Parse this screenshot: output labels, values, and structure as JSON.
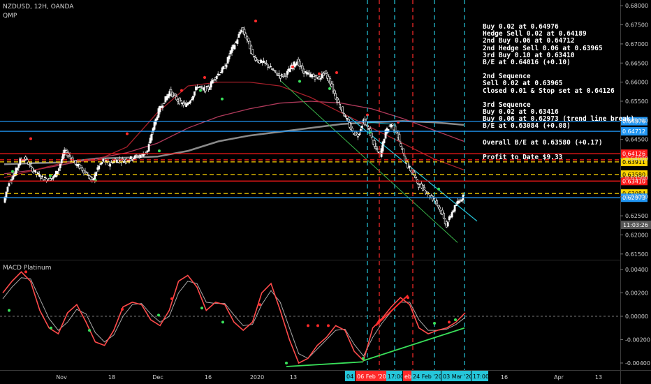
{
  "header": {
    "symbol": "NZDUSD, 12H, OANDA",
    "indicator": "QMP"
  },
  "macd_title": "MACD Platinum",
  "notes": {
    "group1": [
      "Buy 0.02 at 0.64976",
      "Hedge Sell 0.02 at 0.64189",
      "2nd Buy 0.06 at 0.64712",
      "2nd Hedge Sell 0.06 at 0.63965",
      "3rd Buy 0.10 at 0.63410",
      "B/E at 0.64016 (+0.10)"
    ],
    "group2": [
      "2nd Sequence",
      "Sell 0.02 at 0.63965",
      "Closed 0.01 & Stop set at 0.64126"
    ],
    "group3": [
      "3rd Sequence",
      "Buy 0.02 at 0.63416",
      "Buy 0.06 at 0.62973 (trend line break)",
      "B/E at 0.63084 (+0.08)"
    ],
    "overall": "Overall B/E at 0.63580 (+0.17)",
    "profit": "Profit to Date $9.33"
  },
  "colors": {
    "blue": "#2196f3",
    "red": "#ff1a1a",
    "yellow": "#ffd500",
    "up": "#ffffff",
    "down": "#ffffff",
    "ma_slow": "#8a8a8a",
    "ma_mid": "#b03a5b",
    "ma_fast": "#a51f2a",
    "channel_green": "#39b54a",
    "channel_cyan": "#26c6da",
    "macd": "#ff4a4a",
    "signal": "#a8a8a8",
    "dot_green": "#39e05a",
    "dot_red": "#ff2a2a",
    "vline_cyan": "#26c6da",
    "vline_red": "#ff2a2a"
  },
  "chart_data": {
    "type": "candlestick",
    "title": "NZDUSD, 12H, OANDA",
    "price_axis": {
      "range": [
        0.6135,
        0.6815
      ],
      "ticks": [
        "0.68000",
        "0.67500",
        "0.67000",
        "0.66500",
        "0.66000",
        "0.65500",
        "0.65000",
        "0.64500",
        "0.64000",
        "0.63500",
        "0.63000",
        "0.62500",
        "0.62000",
        "0.61500"
      ]
    },
    "macd_axis": {
      "range": [
        -0.0046,
        0.0046
      ],
      "ticks": [
        "0.00400",
        "0.00200",
        "0.00000",
        "-0.00200",
        "-0.00400"
      ]
    },
    "x_ticks": [
      "Nov",
      "18",
      "Dec",
      "16",
      "2020",
      "13",
      "17",
      "16",
      "Apr",
      "13"
    ],
    "price_levels": [
      {
        "value": 0.64976,
        "label": "0.64976",
        "kind": "solid",
        "color": "blue"
      },
      {
        "value": 0.64712,
        "label": "0.64712",
        "kind": "solid",
        "color": "blue"
      },
      {
        "value": 0.64126,
        "label": "0.64126",
        "kind": "solid",
        "color": "red"
      },
      {
        "value": 0.63965,
        "label": "0.63965",
        "kind": "dashed",
        "color": "red"
      },
      {
        "value": 0.63911,
        "label": "0.63911",
        "kind": "dashed",
        "color": "yellow"
      },
      {
        "value": 0.6358,
        "label": "0.63580",
        "kind": "dashed",
        "color": "yellow"
      },
      {
        "value": 0.6341,
        "label": "0.63410",
        "kind": "solid",
        "color": "red"
      },
      {
        "value": 0.63084,
        "label": "0.63084",
        "kind": "dashed",
        "color": "yellow"
      },
      {
        "value": 0.62973,
        "label": "0.62973",
        "kind": "solid",
        "color": "blue"
      }
    ],
    "current_time": "11:03:26",
    "vline_labels": [
      "04 F",
      "06 Feb '20",
      "17:00",
      "eb '",
      "24 Feb '20",
      "03 Mar '20",
      "17:00"
    ],
    "price_path": [
      0.6285,
      0.634,
      0.636,
      0.6395,
      0.64,
      0.6375,
      0.636,
      0.635,
      0.6345,
      0.635,
      0.6375,
      0.642,
      0.6405,
      0.6385,
      0.6375,
      0.636,
      0.634,
      0.6375,
      0.6395,
      0.6385,
      0.6395,
      0.6395,
      0.6395,
      0.64,
      0.6405,
      0.641,
      0.642,
      0.648,
      0.6525,
      0.655,
      0.6575,
      0.656,
      0.6545,
      0.654,
      0.656,
      0.659,
      0.658,
      0.6585,
      0.661,
      0.6625,
      0.664,
      0.668,
      0.6705,
      0.674,
      0.6712,
      0.667,
      0.6655,
      0.665,
      0.664,
      0.6625,
      0.6615,
      0.662,
      0.664,
      0.6655,
      0.663,
      0.662,
      0.6615,
      0.661,
      0.6625,
      0.66,
      0.656,
      0.653,
      0.65,
      0.647,
      0.646,
      0.65,
      0.6475,
      0.643,
      0.641,
      0.647,
      0.649,
      0.647,
      0.642,
      0.638,
      0.636,
      0.633,
      0.632,
      0.63,
      0.629,
      0.626,
      0.6225,
      0.626,
      0.6285,
      0.63
    ],
    "ma_slow": [
      0.6385,
      0.6388,
      0.639,
      0.64,
      0.6402,
      0.6405,
      0.642,
      0.6445,
      0.646,
      0.647,
      0.648,
      0.649,
      0.6495,
      0.6498,
      0.6495,
      0.6488
    ],
    "ma_mid": [
      0.636,
      0.637,
      0.6385,
      0.64,
      0.6415,
      0.644,
      0.648,
      0.651,
      0.653,
      0.6545,
      0.655,
      0.6545,
      0.653,
      0.6505,
      0.6475,
      0.6445
    ],
    "ma_fast": [
      0.635,
      0.637,
      0.639,
      0.6395,
      0.643,
      0.652,
      0.659,
      0.66,
      0.66,
      0.659,
      0.656,
      0.652,
      0.648,
      0.644,
      0.64,
      0.637
    ],
    "macd": [
      0.002,
      0.003,
      0.0038,
      0.003,
      0.0005,
      -0.001,
      -0.0015,
      0.0003,
      0.001,
      -0.0005,
      -0.0022,
      -0.0025,
      -0.0012,
      0.0008,
      0.0012,
      0.001,
      -0.0003,
      -0.0008,
      0.0005,
      0.003,
      0.0035,
      0.0025,
      0.0005,
      0.0012,
      0.001,
      -0.0005,
      -0.0012,
      -0.0005,
      0.002,
      0.0028,
      0.0005,
      -0.002,
      -0.004,
      -0.0036,
      -0.0025,
      -0.0018,
      -0.0008,
      -0.0012,
      -0.003,
      -0.0038,
      -0.001,
      -0.0002,
      0.0008,
      0.0016,
      0.001,
      -0.001,
      -0.0015,
      -0.0012,
      -0.001,
      -0.0005,
      0.0003
    ],
    "signal": [
      0.0015,
      0.0025,
      0.0033,
      0.0032,
      0.0015,
      -0.0002,
      -0.0012,
      -0.0005,
      0.0006,
      0.0002,
      -0.0014,
      -0.0022,
      -0.0016,
      0.0,
      0.001,
      0.0011,
      0.0002,
      -0.0005,
      0.0,
      0.002,
      0.003,
      0.0028,
      0.0012,
      0.0011,
      0.0011,
      0.0001,
      -0.0008,
      -0.0007,
      0.001,
      0.0022,
      0.0012,
      -0.001,
      -0.0032,
      -0.0036,
      -0.0028,
      -0.002,
      -0.0012,
      -0.0011,
      -0.0024,
      -0.0034,
      -0.0018,
      -0.0006,
      0.0004,
      0.0012,
      0.0012,
      -0.0003,
      -0.0012,
      -0.0012,
      -0.0011,
      -0.0007,
      -0.0001
    ]
  }
}
